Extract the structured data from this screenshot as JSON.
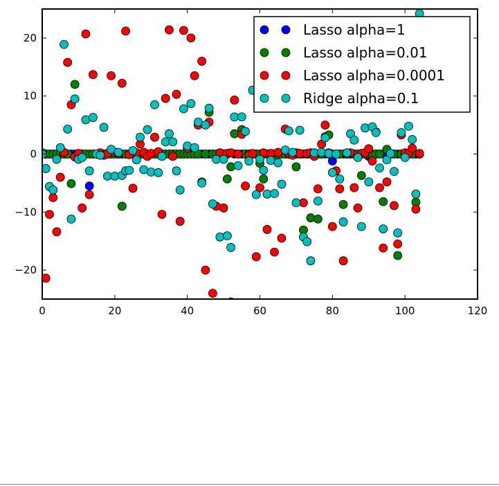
{
  "chart_data": {
    "type": "scatter",
    "title": "",
    "xlabel": "",
    "ylabel": "",
    "xlim": [
      0,
      120
    ],
    "ylim": [
      -25,
      25
    ],
    "xticks": [
      0,
      20,
      40,
      60,
      80,
      100,
      120
    ],
    "yticks": [
      -20,
      -10,
      0,
      10,
      20
    ],
    "xtick_labels": [
      "0",
      "20",
      "40",
      "60",
      "80",
      "100",
      "120"
    ],
    "ytick_labels": [
      "−20",
      "−10",
      "0",
      "10",
      "20"
    ],
    "grid": false,
    "legend_position": "top-right",
    "x_start": 0,
    "series": [
      {
        "name": "Lasso alpha=1",
        "color": "#0000ff",
        "values": [
          0,
          0,
          0,
          0,
          0,
          0,
          0,
          0,
          0,
          0,
          0,
          0,
          0,
          -5.5,
          0,
          0,
          0,
          0,
          0,
          0,
          0,
          0,
          0,
          0,
          0,
          0,
          0,
          0,
          0,
          0,
          0,
          0,
          0,
          0,
          0,
          0,
          0,
          0,
          0,
          0,
          0,
          0,
          0,
          0,
          0,
          0,
          0,
          0,
          0,
          0,
          0,
          0,
          -25.5,
          0,
          0,
          0,
          0,
          0,
          0,
          0,
          0,
          0,
          0,
          0,
          0,
          0,
          0,
          0,
          0,
          0,
          0,
          0,
          0,
          0,
          0,
          0,
          0,
          0,
          0,
          0,
          -1.2,
          0,
          0,
          0,
          0,
          0,
          0,
          0,
          0,
          0,
          -0.4,
          0,
          0,
          0,
          0,
          0,
          0,
          0,
          0,
          0,
          0,
          0,
          0,
          0,
          0
        ]
      },
      {
        "name": "Lasso alpha=0.01",
        "color": "#007f00",
        "values": [
          0,
          0,
          0,
          0,
          0,
          0,
          0,
          0,
          -5.1,
          12,
          0,
          0,
          0,
          0,
          0,
          0,
          0,
          0,
          0,
          0,
          0,
          0,
          -9,
          0,
          0,
          0,
          0,
          0,
          0,
          0,
          0,
          0,
          0,
          0,
          0,
          0,
          0,
          0,
          0,
          0,
          0,
          0,
          0,
          0,
          -4.8,
          0,
          7.2,
          0,
          0,
          0,
          0,
          -4.3,
          -2.2,
          3.5,
          0,
          4.2,
          0,
          0,
          0,
          0,
          -1.6,
          -4.3,
          0,
          0,
          -1,
          0,
          0,
          0,
          0,
          0,
          -2.2,
          0,
          -13.1,
          0,
          -11,
          0,
          -11.2,
          0,
          3,
          3.3,
          0,
          0,
          0,
          -8.7,
          0,
          0,
          0,
          0,
          -3.7,
          0,
          0,
          0,
          0,
          0,
          -8.2,
          0.8,
          0,
          0,
          -17.5,
          0,
          0,
          0,
          0,
          -8.3,
          0
        ]
      },
      {
        "name": "Lasso alpha=0.0001",
        "color": "#ff0000",
        "values": [
          0.2,
          -21.4,
          -10.4,
          -7.5,
          -13.4,
          -4,
          0.3,
          15.8,
          8.5,
          -0.5,
          0.1,
          -9.3,
          20.7,
          -7,
          13.7,
          0,
          0.2,
          -0.2,
          0.1,
          13.5,
          0.3,
          0.1,
          12.2,
          21.2,
          -0.1,
          -5.9,
          0.2,
          1.7,
          0.3,
          -0.4,
          0.1,
          2.9,
          0.4,
          -10.4,
          9.6,
          21.4,
          -0.4,
          10.3,
          -11.6,
          21.3,
          1,
          20,
          13.5,
          5,
          16,
          -20,
          5.5,
          -24,
          -9,
          0.2,
          -9.3,
          0.1,
          0.2,
          9.3,
          0,
          3.4,
          -5.5,
          -0.2,
          0.1,
          -17.7,
          -5.8,
          0.2,
          -13,
          0.1,
          -16.9,
          0.3,
          -14.5,
          4.3,
          0.1,
          -0.2,
          0.2,
          0.1,
          -8.4,
          0.1,
          0.2,
          -0.4,
          -6,
          1.7,
          5,
          0.2,
          -12.5,
          -2.9,
          -6,
          -18.4,
          0.1,
          0.2,
          -5.8,
          -9.3,
          0.1,
          0.2,
          0.9,
          -1.2,
          3.8,
          -5.8,
          -16.2,
          -4.8,
          0.1,
          -8.9,
          -15.5,
          3.3,
          0.2,
          0.1,
          1,
          -9.5,
          0.1
        ]
      },
      {
        "name": "Ridge alpha=0.1",
        "color": "#00bfbf",
        "values": [
          0,
          -2.5,
          -5.6,
          -6.2,
          -0.9,
          1.1,
          18.9,
          4.3,
          -11.2,
          9.5,
          -0.9,
          -0.6,
          5.9,
          -2.9,
          6.3,
          0,
          -0.2,
          4.6,
          -3.8,
          0.8,
          -3.8,
          0.3,
          -3.7,
          -2.9,
          -2.8,
          0.6,
          -1,
          2.9,
          -2.7,
          4.2,
          -3.1,
          8.5,
          -3.2,
          -0.4,
          2.1,
          3.5,
          2.1,
          -2.9,
          -6.2,
          7.8,
          1.4,
          8.7,
          1.1,
          5.5,
          -5,
          5,
          7.9,
          -8.6,
          -0.9,
          -14.3,
          -0.9,
          -14.1,
          -16.1,
          6.4,
          -2,
          6.4,
          3.9,
          -1.2,
          11,
          -7,
          -0.9,
          -2.8,
          -6.9,
          -1.1,
          -6.8,
          -1.5,
          -5.2,
          0.7,
          4,
          0.3,
          -8.4,
          4.1,
          -14.3,
          -15.1,
          -18.4,
          0.2,
          -8.1,
          0.3,
          2.8,
          0.1,
          -3.2,
          0,
          -4.3,
          -11.7,
          0.2,
          3.5,
          2.4,
          -0.6,
          -12.5,
          4.5,
          -4.8,
          4.7,
          3.7,
          -2.4,
          -12.9,
          -1,
          0.1,
          -3,
          -13.6,
          3.7,
          -0.6,
          4.8,
          2.5,
          -6.9,
          24.2
        ]
      }
    ]
  }
}
